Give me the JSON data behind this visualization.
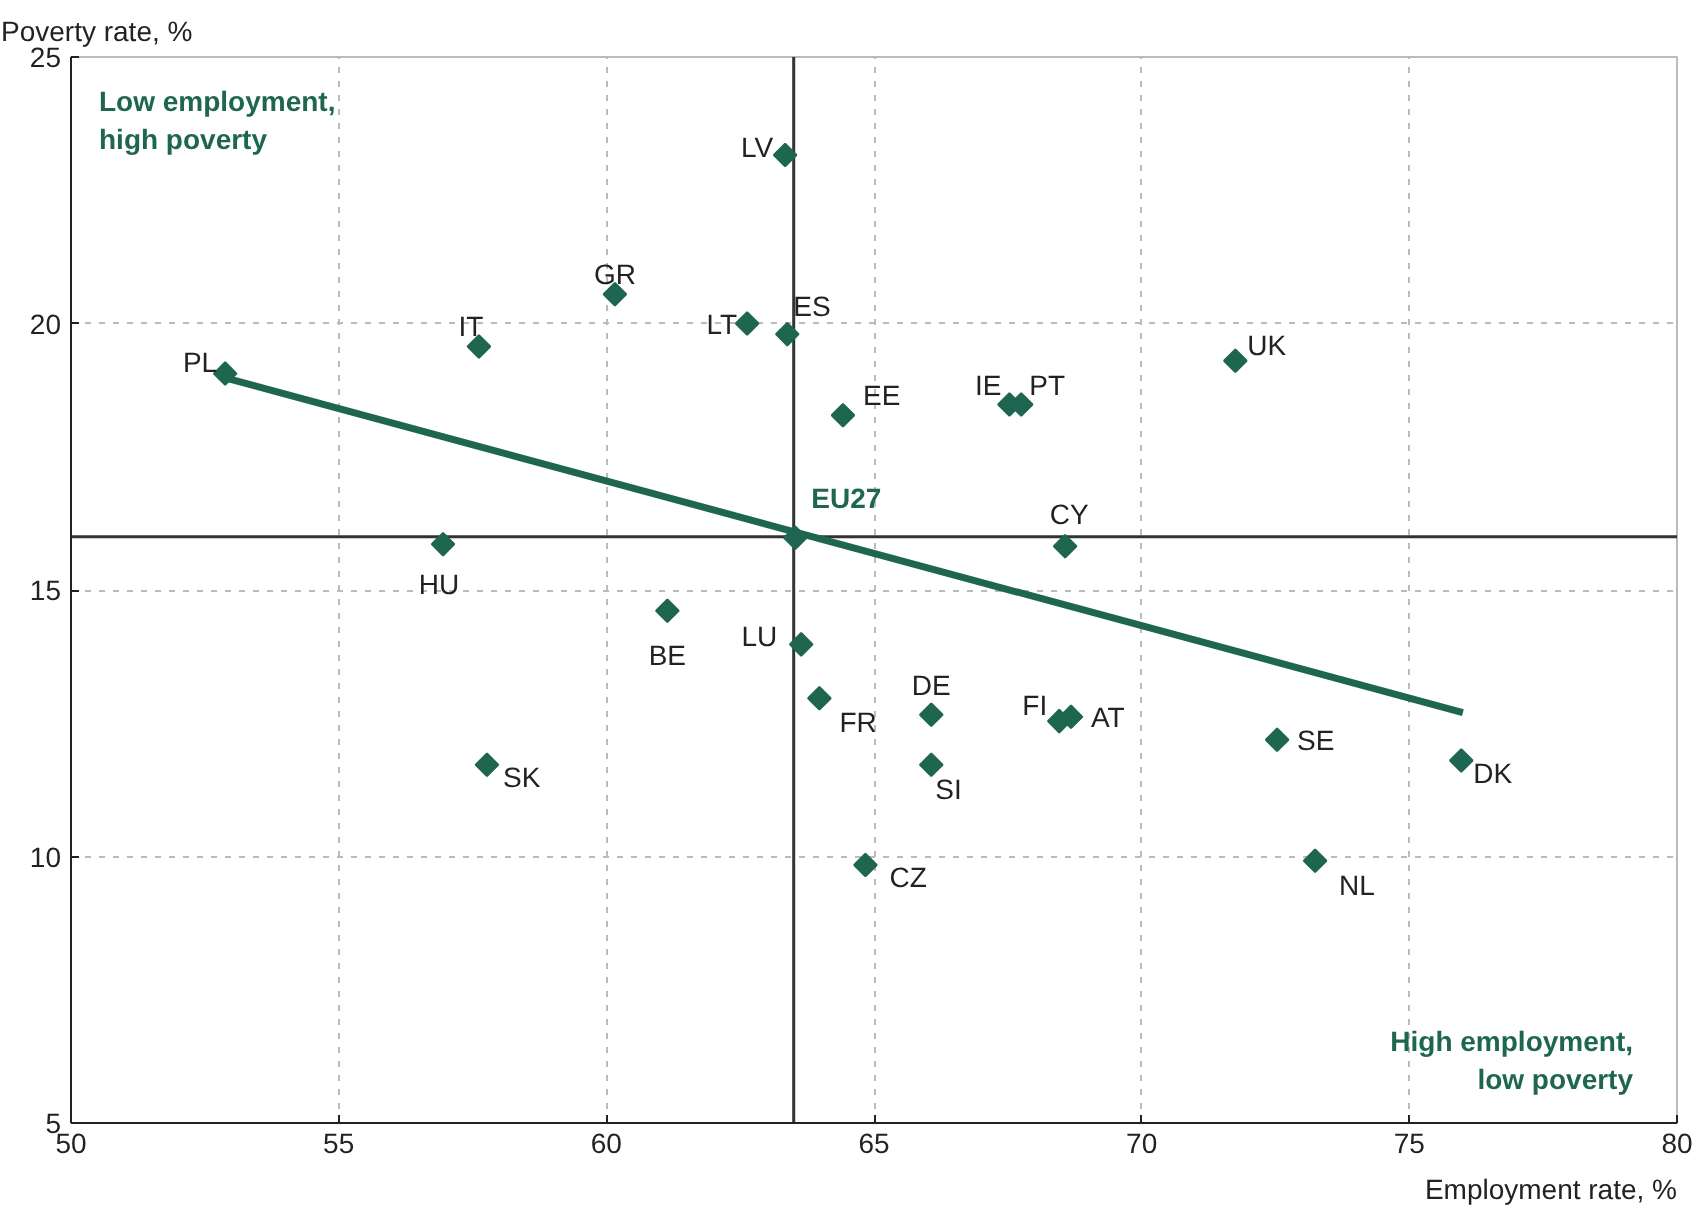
{
  "chart_data": {
    "type": "scatter",
    "xlabel": "Employment rate, %",
    "ylabel": "Poverty rate, %",
    "xlim": [
      50,
      80
    ],
    "xticks": [
      50,
      55,
      60,
      65,
      70,
      75,
      80
    ],
    "ylim": [
      5,
      25
    ],
    "yticks": [
      5,
      10,
      15,
      20,
      25
    ],
    "grid": true,
    "series": [
      {
        "marker": "diamond",
        "color": "#1e6650",
        "x": [
          52.88,
          57.62,
          60.16,
          63.34,
          62.63,
          63.38,
          64.42,
          67.53,
          67.75,
          71.75,
          63.53,
          68.57,
          56.95,
          61.14,
          63.64,
          63.98,
          66.07,
          68.46,
          68.68,
          72.53,
          75.97,
          57.77,
          66.07,
          64.84,
          73.24
        ],
        "values": [
          19.06,
          19.57,
          20.55,
          23.16,
          20.0,
          19.8,
          18.28,
          18.48,
          18.48,
          19.3,
          15.98,
          15.82,
          15.86,
          14.61,
          13.98,
          12.97,
          12.66,
          12.54,
          12.62,
          12.19,
          11.8,
          11.72,
          11.72,
          9.84,
          9.92
        ]
      },
      {
        "type": "line",
        "marker": "none",
        "color": "#1e6650",
        "x": [
          52.88,
          76.0
        ],
        "values": [
          18.98,
          12.7
        ]
      }
    ],
    "ref_lines": [
      {
        "axis": "x",
        "value": 63.5,
        "color": "#333333"
      },
      {
        "axis": "y",
        "value": 16,
        "color": "#333333"
      }
    ],
    "annotations": [
      "Low employment,\nhigh poverty",
      "High employment,\nlow poverty",
      {
        "text": "EU27",
        "x": 63.53,
        "y": 15.98
      },
      {
        "text": "PL",
        "x": 52.88,
        "y": 19.06
      },
      {
        "text": "IT",
        "x": 57.62,
        "y": 19.57
      },
      {
        "text": "GR",
        "x": 60.16,
        "y": 20.55
      },
      {
        "text": "LV",
        "x": 63.34,
        "y": 23.16
      },
      {
        "text": "LT",
        "x": 62.63,
        "y": 20.0
      },
      {
        "text": "ES",
        "x": 63.38,
        "y": 19.8
      },
      {
        "text": "EE",
        "x": 64.42,
        "y": 18.28
      },
      {
        "text": "IE",
        "x": 67.53,
        "y": 18.48
      },
      {
        "text": "PT",
        "x": 67.75,
        "y": 18.48
      },
      {
        "text": "UK",
        "x": 71.75,
        "y": 19.3
      },
      {
        "text": "CY",
        "x": 68.57,
        "y": 15.82
      },
      {
        "text": "HU",
        "x": 56.95,
        "y": 15.86
      },
      {
        "text": "BE",
        "x": 61.14,
        "y": 14.61
      },
      {
        "text": "LU",
        "x": 63.64,
        "y": 13.98
      },
      {
        "text": "FR",
        "x": 63.98,
        "y": 12.97
      },
      {
        "text": "DE",
        "x": 66.07,
        "y": 12.66
      },
      {
        "text": "FI",
        "x": 68.46,
        "y": 12.54
      },
      {
        "text": "AT",
        "x": 68.68,
        "y": 12.62
      },
      {
        "text": "SE",
        "x": 72.53,
        "y": 12.19
      },
      {
        "text": "DK",
        "x": 75.97,
        "y": 11.8
      },
      {
        "text": "SK",
        "x": 57.77,
        "y": 11.72
      },
      {
        "text": "SI",
        "x": 66.07,
        "y": 11.72
      },
      {
        "text": "CZ",
        "x": 64.84,
        "y": 9.84
      },
      {
        "text": "NL",
        "x": 73.24,
        "y": 9.92
      }
    ]
  }
}
